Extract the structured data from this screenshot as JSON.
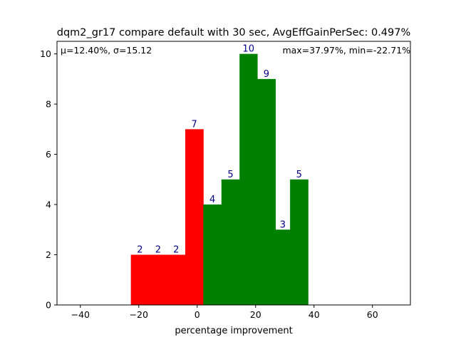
{
  "chart_data": {
    "type": "bar",
    "title": "dqm2_gr17 compare default with 30 sec, AvgEffGainPerSec: 0.497%",
    "xlabel": "percentage improvement",
    "ylabel": "",
    "xlim": [
      -48,
      73
    ],
    "ylim": [
      0,
      10.5
    ],
    "xticks": [
      -40,
      -20,
      0,
      20,
      40,
      60
    ],
    "yticks": [
      0,
      2,
      4,
      6,
      8,
      10
    ],
    "grid": false,
    "annotations": {
      "stats_left": "μ=12.40%, σ=15.12",
      "stats_right": "max=37.97%, min=-22.71%"
    },
    "bars": [
      {
        "x0": -22.71,
        "x1": -16.5,
        "value": 2,
        "label": "2",
        "color": "#ff0000"
      },
      {
        "x0": -16.5,
        "x1": -10.3,
        "value": 2,
        "label": "2",
        "color": "#ff0000"
      },
      {
        "x0": -10.3,
        "x1": -4.1,
        "value": 2,
        "label": "2",
        "color": "#ff0000"
      },
      {
        "x0": -4.1,
        "x1": 2.1,
        "value": 7,
        "label": "7",
        "color": "#ff0000"
      },
      {
        "x0": 2.1,
        "x1": 8.3,
        "value": 4,
        "label": "4",
        "color": "#008000"
      },
      {
        "x0": 8.3,
        "x1": 14.5,
        "value": 5,
        "label": "5",
        "color": "#008000"
      },
      {
        "x0": 14.5,
        "x1": 20.6,
        "value": 10,
        "label": "10",
        "color": "#008000"
      },
      {
        "x0": 20.6,
        "x1": 26.8,
        "value": 9,
        "label": "9",
        "color": "#008000"
      },
      {
        "x0": 26.8,
        "x1": 31.8,
        "value": 3,
        "label": "3",
        "color": "#008000"
      },
      {
        "x0": 31.8,
        "x1": 37.97,
        "value": 5,
        "label": "5",
        "color": "#008000"
      }
    ],
    "label_color": "#00008b"
  }
}
